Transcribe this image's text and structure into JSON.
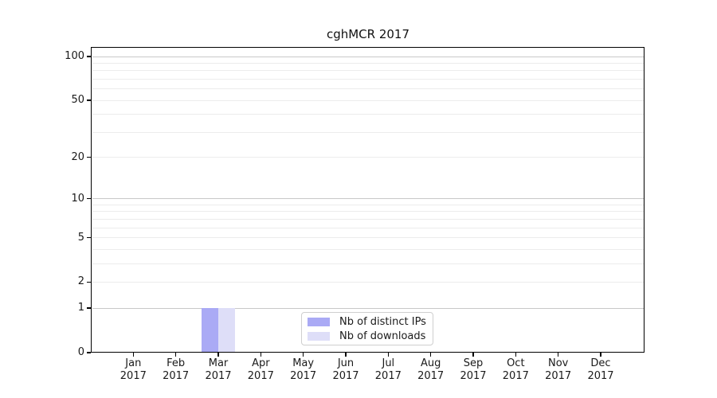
{
  "chart_data": {
    "type": "bar",
    "title": "cghMCR 2017",
    "categories": [
      "Jan 2017",
      "Feb 2017",
      "Mar 2017",
      "Apr 2017",
      "May 2017",
      "Jun 2017",
      "Jul 2017",
      "Aug 2017",
      "Sep 2017",
      "Oct 2017",
      "Nov 2017",
      "Dec 2017"
    ],
    "series": [
      {
        "name": "Nb of distinct IPs",
        "color": "#aaaaf5",
        "values": [
          0,
          0,
          1,
          0,
          0,
          0,
          0,
          0,
          0,
          0,
          0,
          0
        ]
      },
      {
        "name": "Nb of downloads",
        "color": "#dedef8",
        "values": [
          0,
          0,
          1,
          0,
          0,
          0,
          0,
          0,
          0,
          0,
          0,
          0
        ]
      }
    ],
    "yscale": "log1p",
    "yticks": [
      0,
      1,
      2,
      5,
      10,
      20,
      50,
      100
    ],
    "grid_major_values": [
      1,
      10,
      100
    ],
    "grid_minor_values": [
      2,
      3,
      4,
      5,
      6,
      7,
      8,
      9,
      20,
      30,
      40,
      50,
      60,
      70,
      80,
      90
    ],
    "ylim": [
      0,
      116
    ],
    "xlabel": "",
    "ylabel": "",
    "grid": true,
    "legend_position": "bottom-center",
    "colors": {
      "major_grid": "#c8c8c8",
      "minor_grid": "#ececec",
      "axis": "#000000",
      "text": "#1a1a1a"
    }
  }
}
